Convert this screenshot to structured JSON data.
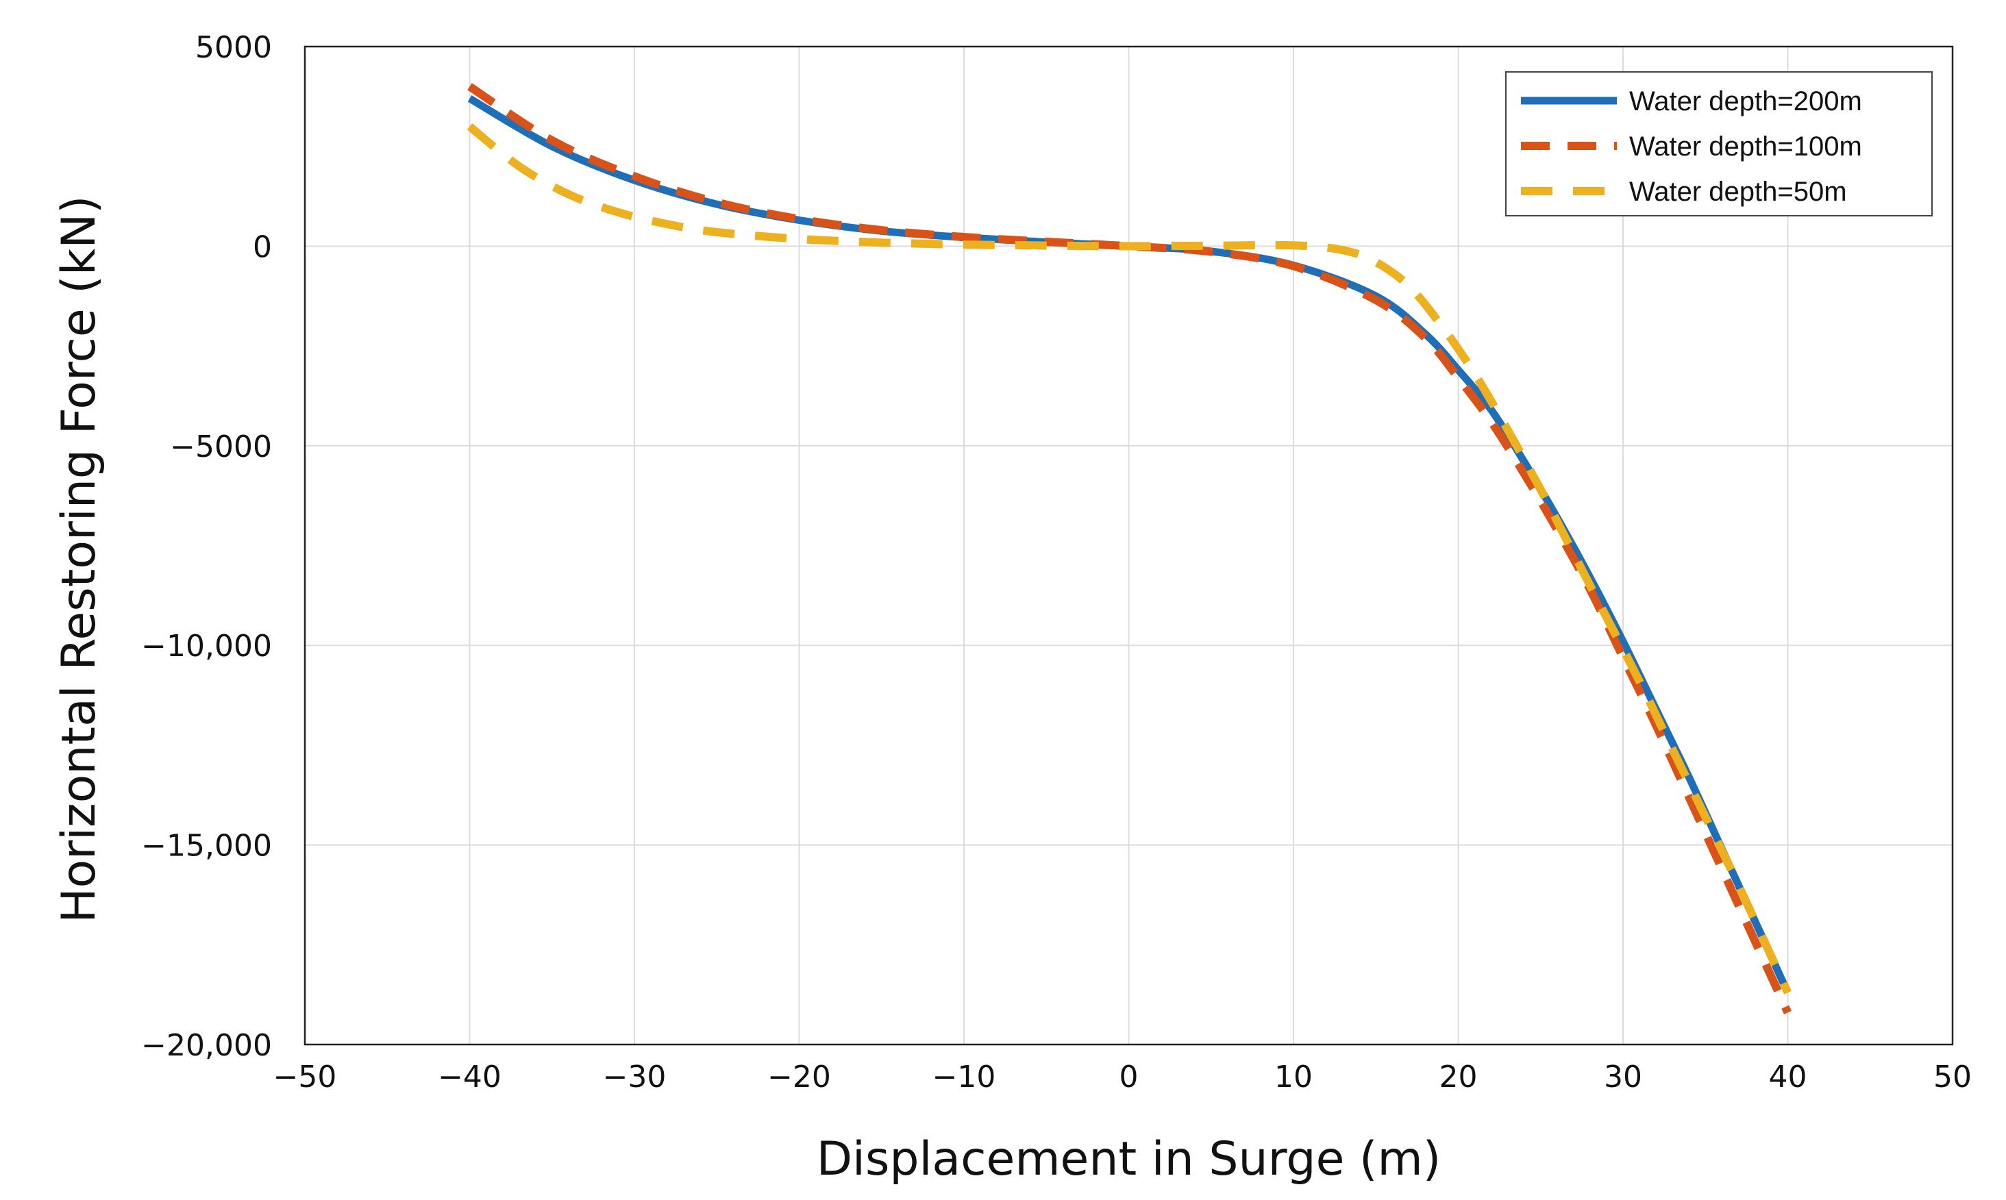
{
  "chart_data": {
    "type": "line",
    "title": "",
    "xlabel": "Displacement in Surge (m)",
    "ylabel": "Horizontal Restoring Force (kN)",
    "xlim": [
      -50,
      50
    ],
    "ylim": [
      -20000,
      5000
    ],
    "x_ticks": [
      -50,
      -40,
      -30,
      -20,
      -10,
      0,
      10,
      20,
      30,
      40,
      50
    ],
    "x_tick_labels": [
      "−50",
      "−40",
      "−30",
      "−20",
      "−10",
      "0",
      "10",
      "20",
      "30",
      "40",
      "50"
    ],
    "y_ticks": [
      5000,
      0,
      -5000,
      -10000,
      -15000,
      -20000
    ],
    "y_tick_labels": [
      "5000",
      "0",
      "−5000",
      "−10,000",
      "−15,000",
      "−20,000"
    ],
    "grid": true,
    "legend_position": "top-right",
    "series": [
      {
        "name": "Water depth=200m",
        "color": "#1f6fb8",
        "style": "solid",
        "x": [
          -40,
          -35,
          -30,
          -25,
          -20,
          -15,
          -10,
          -5,
          0,
          5,
          10,
          15,
          18,
          20,
          22,
          24,
          26,
          28,
          30,
          32,
          34,
          36,
          38,
          40
        ],
        "y": [
          3700,
          2500,
          1650,
          1050,
          650,
          380,
          220,
          100,
          0,
          -130,
          -480,
          -1250,
          -2200,
          -3100,
          -4100,
          -5400,
          -6800,
          -8300,
          -9900,
          -11600,
          -13300,
          -15100,
          -16900,
          -18700
        ]
      },
      {
        "name": "Water depth=100m",
        "color": "#d95319",
        "style": "dashed",
        "x": [
          -40,
          -35,
          -30,
          -25,
          -20,
          -15,
          -10,
          -5,
          0,
          5,
          10,
          15,
          18,
          20,
          22,
          24,
          26,
          28,
          30,
          32,
          34,
          36,
          38,
          40
        ],
        "y": [
          4000,
          2650,
          1750,
          1100,
          680,
          400,
          230,
          110,
          0,
          -140,
          -500,
          -1350,
          -2300,
          -3300,
          -4400,
          -5700,
          -7100,
          -8600,
          -10300,
          -12000,
          -13800,
          -15600,
          -17400,
          -19200
        ]
      },
      {
        "name": "Water depth=50m",
        "color": "#edb120",
        "style": "dashed",
        "x": [
          -40,
          -37,
          -34,
          -31,
          -28,
          -25,
          -20,
          -15,
          -10,
          -5,
          0,
          5,
          10,
          13,
          15,
          17,
          19,
          21,
          23,
          25,
          27,
          29,
          31,
          33,
          35,
          37,
          40
        ],
        "y": [
          3000,
          2000,
          1300,
          850,
          550,
          350,
          180,
          90,
          40,
          15,
          0,
          10,
          20,
          -100,
          -400,
          -1000,
          -2000,
          -3200,
          -4600,
          -6100,
          -7700,
          -9300,
          -10900,
          -12600,
          -14300,
          -16000,
          -18700
        ]
      }
    ]
  }
}
